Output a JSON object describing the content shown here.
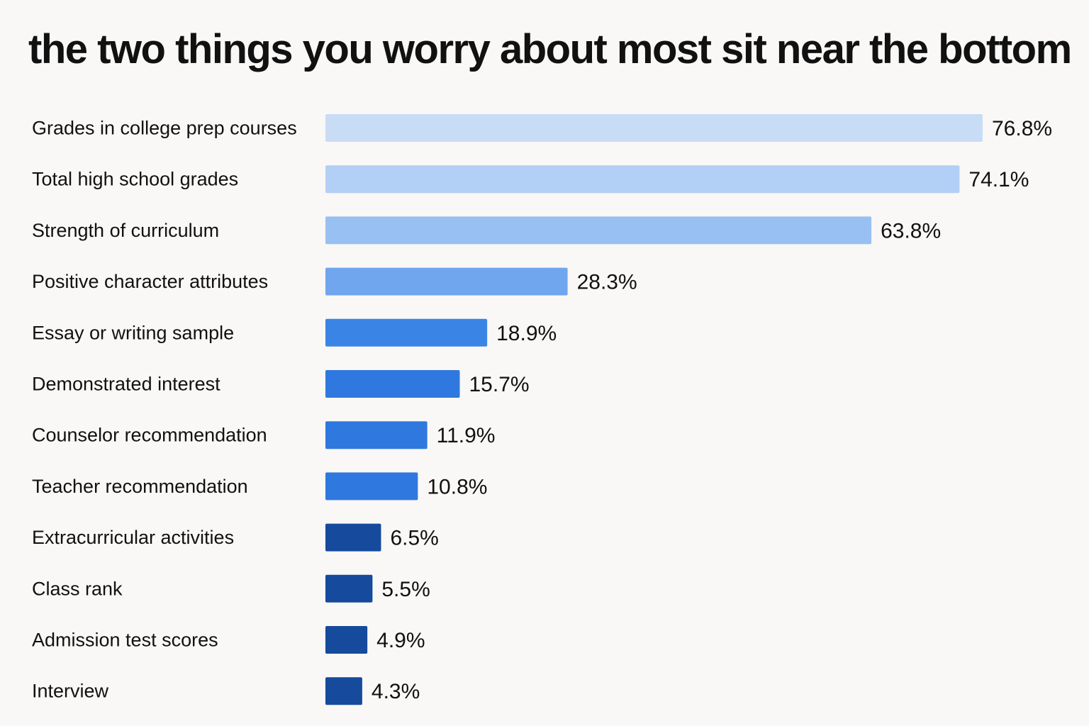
{
  "chart_data": {
    "type": "bar",
    "orientation": "horizontal",
    "title": "the two things you worry about most sit near the bottom",
    "categories": [
      "Grades in college prep courses",
      "Total high school grades",
      "Strength of curriculum",
      "Positive character attributes",
      "Essay or writing sample",
      "Demonstrated interest",
      "Counselor recommendation",
      "Teacher recommendation",
      "Extracurricular activities",
      "Class rank",
      "Admission test scores",
      "Interview"
    ],
    "values": [
      76.8,
      74.1,
      63.8,
      28.3,
      18.9,
      15.7,
      11.9,
      10.8,
      6.5,
      5.5,
      4.9,
      4.3
    ],
    "value_labels": [
      "76.8%",
      "74.1%",
      "63.8%",
      "28.3%",
      "18.9%",
      "15.7%",
      "11.9%",
      "10.8%",
      "6.5%",
      "5.5%",
      "4.9%",
      "4.3%"
    ],
    "bar_colors": [
      "#c9dcf6",
      "#b2cff5",
      "#99c0f2",
      "#6fa6ee",
      "#3a84e5",
      "#2f78df",
      "#2f78df",
      "#2f78df",
      "#154a9c",
      "#154a9c",
      "#154a9c",
      "#154a9c"
    ],
    "xlim": [
      0,
      76.8
    ],
    "grid": false,
    "legend": "none"
  }
}
